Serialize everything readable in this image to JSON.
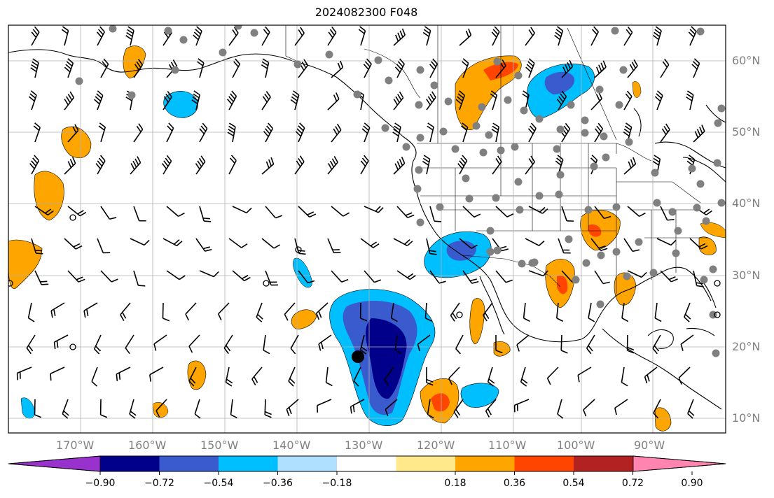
{
  "title": "2024082300 F048",
  "lon_labels": [
    "170°W",
    "160°W",
    "150°W",
    "140°W",
    "130°W",
    "120°W",
    "110°W",
    "100°W",
    "90°W"
  ],
  "lat_labels": [
    "60°N",
    "50°N",
    "40°N",
    "30°N",
    "20°N",
    "10°N"
  ],
  "colorbar": {
    "labels": [
      "−0.90",
      "−0.72",
      "−0.54",
      "−0.36",
      "−0.18",
      "0.18",
      "0.36",
      "0.54",
      "0.72",
      "0.90"
    ],
    "colors": [
      "#9932cc",
      "#00008b",
      "#3a5bcd",
      "#00bfff",
      "#b0e0ff",
      "#ffffff",
      "#ffe98a",
      "#ffa500",
      "#ff4500",
      "#b22222",
      "#ff85b0"
    ]
  },
  "colors": {
    "land_line": "#000000",
    "grid": "#b0b0b0",
    "station_dot": "#808080",
    "label": "#808080"
  }
}
